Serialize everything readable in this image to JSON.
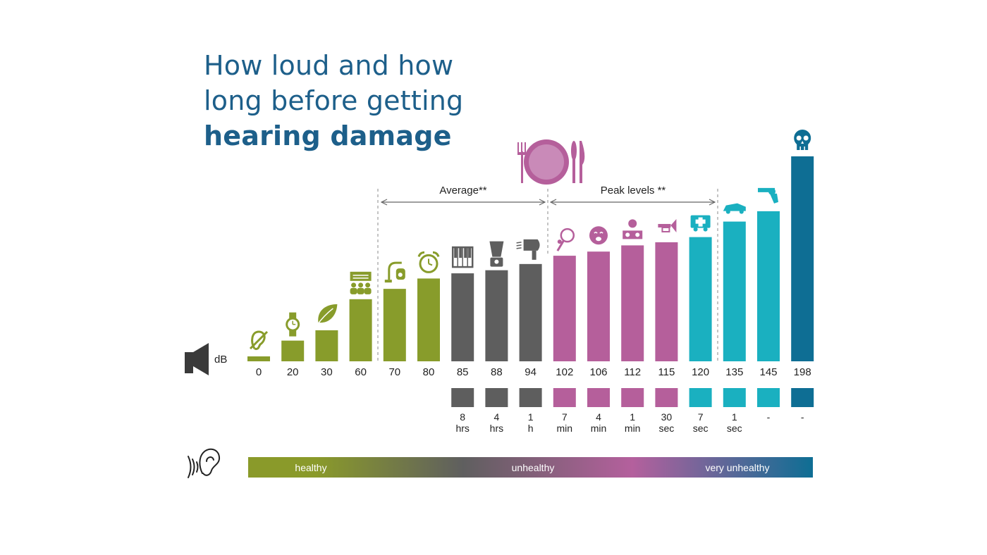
{
  "title": {
    "line1": "How loud and how",
    "line2": "long before getting",
    "line3": "hearing damage"
  },
  "chart_data": {
    "type": "bar",
    "ylabel": "dB",
    "categories": [
      "0",
      "20",
      "30",
      "60",
      "70",
      "80",
      "85",
      "88",
      "94",
      "102",
      "106",
      "112",
      "115",
      "120",
      "135",
      "145",
      "198"
    ],
    "values": [
      0,
      20,
      30,
      60,
      70,
      80,
      85,
      88,
      94,
      102,
      106,
      112,
      115,
      120,
      135,
      145,
      198
    ],
    "icons": [
      "ear-slash-icon",
      "watch-icon",
      "leaf-icon",
      "conversation-icon",
      "vacuum-cleaner-icon",
      "alarm-clock-icon",
      "piano-icon",
      "blender-icon",
      "hair-dryer-icon",
      "tennis-racket-icon",
      "crying-baby-icon",
      "dj-icon",
      "trumpet-icon",
      "ambulance-icon",
      "race-car-icon",
      "revolver-icon",
      "skull-icon"
    ],
    "duration_top": [
      "",
      "",
      "",
      "",
      "",
      "",
      "8",
      "4",
      "1",
      "7",
      "4",
      "1",
      "30",
      "7",
      "1",
      "-",
      "-"
    ],
    "duration_bottom": [
      "",
      "",
      "",
      "",
      "",
      "",
      "hrs",
      "hrs",
      "h",
      "min",
      "min",
      "min",
      "sec",
      "sec",
      "sec",
      "",
      ""
    ],
    "groups": [
      {
        "label": "Average**",
        "from": "70",
        "to": "94"
      },
      {
        "label": "Peak levels **",
        "from": "102",
        "to": "120"
      }
    ],
    "scale": {
      "labels": [
        "healthy",
        "unhealthy",
        "very unhealthy"
      ],
      "colors": [
        "#8a9a2a",
        "#5f5f5f",
        "#b4609d",
        "#0e6e94"
      ]
    },
    "colors": {
      "green": "#889c2b",
      "grey": "#5e5e5e",
      "pink": "#b55f9b",
      "teal": "#1ab0c0",
      "blue": "#0e6e94",
      "text": "#222222",
      "dash": "#8a8a8a"
    },
    "bar_colors": [
      "green",
      "green",
      "green",
      "green",
      "green",
      "green",
      "grey",
      "grey",
      "grey",
      "pink",
      "pink",
      "pink",
      "pink",
      "teal",
      "teal",
      "teal",
      "blue"
    ],
    "duration_box_colors": [
      "",
      "",
      "",
      "",
      "",
      "",
      "grey",
      "grey",
      "grey",
      "pink",
      "pink",
      "pink",
      "pink",
      "teal",
      "teal",
      "teal",
      "blue"
    ]
  }
}
